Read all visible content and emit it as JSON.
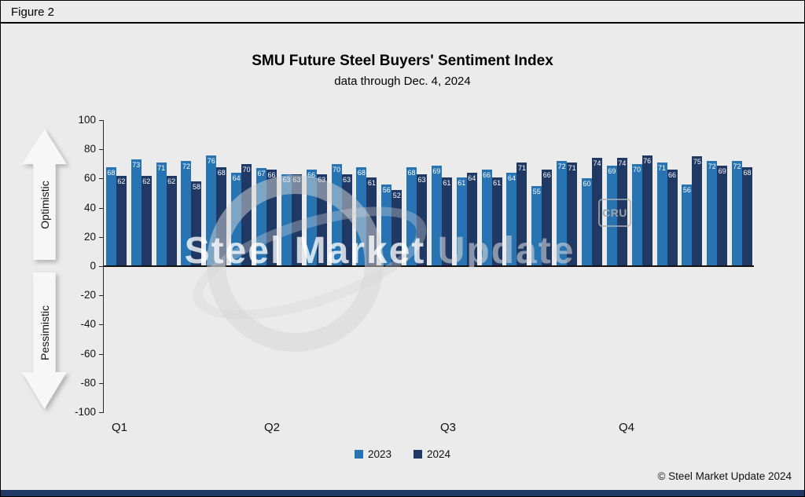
{
  "figure_label": "Figure 2",
  "side_labels": {
    "optimistic": "Optimistic",
    "pessimistic": "Pessimistic"
  },
  "watermark": {
    "text_primary": "Steel Market",
    "text_secondary": "Update",
    "cru_badge": "CRU"
  },
  "footer": {
    "copyright": "© Steel Market Update 2024"
  },
  "colors": {
    "bar_2023": "#2874B2",
    "bar_2024": "#1F3864",
    "accent_strip": "#1F3864",
    "background": "#EBEBEB"
  },
  "chart_data": {
    "type": "bar",
    "title": "SMU Future Steel Buyers' Sentiment Index",
    "subtitle": "data through Dec. 4, 2024",
    "categories": [
      "Q1",
      "Q2",
      "Q3",
      "Q4"
    ],
    "x_description": "26 paired readings per year, quarters Q1-Q4, same-period 2023 vs 2024 bars side by side",
    "series": [
      {
        "name": "2023",
        "color": "#2874B2",
        "values": [
          68,
          73,
          71,
          72,
          76,
          64,
          67,
          63,
          66,
          70,
          68,
          56,
          68,
          69,
          61,
          66,
          64,
          55,
          72,
          60,
          69,
          70,
          71,
          56,
          72,
          72
        ]
      },
      {
        "name": "2024",
        "color": "#1F3864",
        "values": [
          62,
          62,
          62,
          58,
          68,
          70,
          66,
          63,
          63,
          63,
          61,
          52,
          63,
          61,
          64,
          61,
          71,
          66,
          71,
          74,
          74,
          76,
          66,
          75,
          69,
          68
        ]
      }
    ],
    "ylim": [
      -100,
      100
    ],
    "yticks": [
      100,
      80,
      60,
      40,
      20,
      0,
      -20,
      -40,
      -60,
      -80,
      -100
    ],
    "value_labels": "white, at top inside each bar",
    "legend_position": "bottom",
    "gridlines": false
  }
}
